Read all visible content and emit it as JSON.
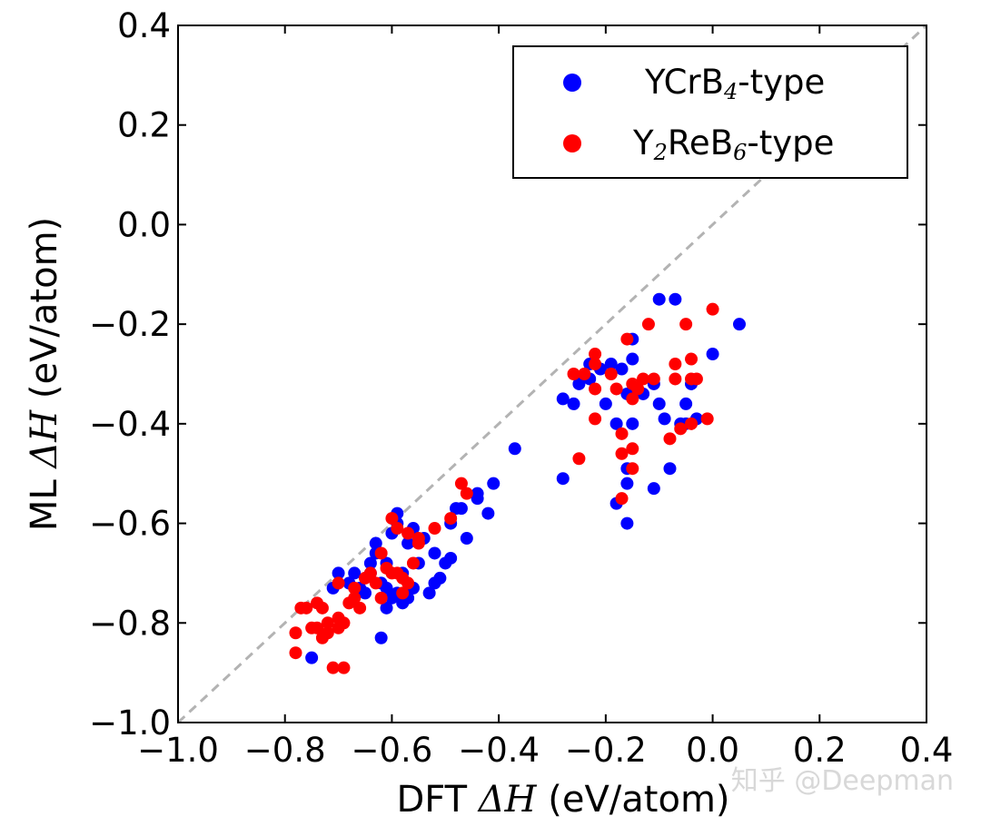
{
  "chart_data": {
    "type": "scatter",
    "xlabel": "DFT ΔH (eV/atom)",
    "ylabel": "ML ΔH (eV/atom)",
    "xlabel_parts": {
      "prefix": "DFT ",
      "delta": "Δ",
      "symbol": "H",
      "unit": " (eV/atom)"
    },
    "ylabel_parts": {
      "prefix": "ML ",
      "delta": "Δ",
      "symbol": "H",
      "unit": " (eV/atom)"
    },
    "xlim": [
      -1.0,
      0.4
    ],
    "ylim": [
      -1.0,
      0.4
    ],
    "xticks": [
      "−1.0",
      "−0.8",
      "−0.6",
      "−0.4",
      "−0.2",
      "0.0",
      "0.2",
      "0.4"
    ],
    "yticks": [
      "−1.0",
      "−0.8",
      "−0.6",
      "−0.4",
      "−0.2",
      "0.0",
      "0.2",
      "0.4"
    ],
    "xtick_values": [
      -1.0,
      -0.8,
      -0.6,
      -0.4,
      -0.2,
      0.0,
      0.2,
      0.4
    ],
    "ytick_values": [
      -1.0,
      -0.8,
      -0.6,
      -0.4,
      -0.2,
      0.0,
      0.2,
      0.4
    ],
    "reference_line": {
      "style": "dashed",
      "color": "#b3b3b3",
      "from": [
        -1.0,
        -1.0
      ],
      "to": [
        0.4,
        0.4
      ]
    },
    "legend": {
      "placement": "top-right",
      "entries": [
        {
          "base": "YCrB",
          "sub": "4",
          "mid": "",
          "sub2": "",
          "suffix": "-type",
          "color": "#0000ff"
        },
        {
          "base": "Y",
          "sub": "2",
          "mid": "ReB",
          "sub2": "6",
          "suffix": "-type",
          "color": "#ff0000"
        }
      ]
    },
    "series": [
      {
        "name": "YCrB4-type",
        "color": "#0000ff",
        "points": [
          [
            -0.75,
            -0.87
          ],
          [
            -0.71,
            -0.73
          ],
          [
            -0.7,
            -0.7
          ],
          [
            -0.68,
            -0.72
          ],
          [
            -0.67,
            -0.7
          ],
          [
            -0.66,
            -0.73
          ],
          [
            -0.65,
            -0.74
          ],
          [
            -0.64,
            -0.7
          ],
          [
            -0.64,
            -0.68
          ],
          [
            -0.63,
            -0.66
          ],
          [
            -0.63,
            -0.64
          ],
          [
            -0.62,
            -0.83
          ],
          [
            -0.62,
            -0.72
          ],
          [
            -0.61,
            -0.77
          ],
          [
            -0.61,
            -0.73
          ],
          [
            -0.61,
            -0.68
          ],
          [
            -0.6,
            -0.75
          ],
          [
            -0.6,
            -0.62
          ],
          [
            -0.59,
            -0.6
          ],
          [
            -0.59,
            -0.58
          ],
          [
            -0.59,
            -0.74
          ],
          [
            -0.58,
            -0.76
          ],
          [
            -0.58,
            -0.7
          ],
          [
            -0.57,
            -0.75
          ],
          [
            -0.57,
            -0.64
          ],
          [
            -0.56,
            -0.61
          ],
          [
            -0.56,
            -0.73
          ],
          [
            -0.55,
            -0.68
          ],
          [
            -0.54,
            -0.63
          ],
          [
            -0.53,
            -0.74
          ],
          [
            -0.52,
            -0.66
          ],
          [
            -0.52,
            -0.72
          ],
          [
            -0.51,
            -0.71
          ],
          [
            -0.5,
            -0.68
          ],
          [
            -0.49,
            -0.67
          ],
          [
            -0.49,
            -0.6
          ],
          [
            -0.48,
            -0.57
          ],
          [
            -0.47,
            -0.57
          ],
          [
            -0.46,
            -0.63
          ],
          [
            -0.44,
            -0.54
          ],
          [
            -0.44,
            -0.55
          ],
          [
            -0.42,
            -0.58
          ],
          [
            -0.41,
            -0.52
          ],
          [
            -0.37,
            -0.45
          ],
          [
            -0.28,
            -0.51
          ],
          [
            -0.28,
            -0.35
          ],
          [
            -0.26,
            -0.36
          ],
          [
            -0.25,
            -0.32
          ],
          [
            -0.23,
            -0.28
          ],
          [
            -0.23,
            -0.31
          ],
          [
            -0.21,
            -0.29
          ],
          [
            -0.2,
            -0.36
          ],
          [
            -0.19,
            -0.28
          ],
          [
            -0.18,
            -0.56
          ],
          [
            -0.18,
            -0.4
          ],
          [
            -0.17,
            -0.29
          ],
          [
            -0.16,
            -0.6
          ],
          [
            -0.16,
            -0.49
          ],
          [
            -0.16,
            -0.52
          ],
          [
            -0.16,
            -0.34
          ],
          [
            -0.15,
            -0.27
          ],
          [
            -0.15,
            -0.23
          ],
          [
            -0.15,
            -0.4
          ],
          [
            -0.13,
            -0.34
          ],
          [
            -0.11,
            -0.32
          ],
          [
            -0.11,
            -0.53
          ],
          [
            -0.1,
            -0.36
          ],
          [
            -0.1,
            -0.15
          ],
          [
            -0.09,
            -0.39
          ],
          [
            -0.08,
            -0.49
          ],
          [
            -0.07,
            -0.15
          ],
          [
            -0.06,
            -0.4
          ],
          [
            -0.05,
            -0.4
          ],
          [
            -0.05,
            -0.36
          ],
          [
            -0.04,
            -0.32
          ],
          [
            -0.03,
            -0.39
          ],
          [
            0.0,
            -0.26
          ],
          [
            0.05,
            -0.2
          ]
        ]
      },
      {
        "name": "Y2ReB6-type",
        "color": "#ff0000",
        "points": [
          [
            -0.78,
            -0.82
          ],
          [
            -0.78,
            -0.86
          ],
          [
            -0.77,
            -0.77
          ],
          [
            -0.76,
            -0.77
          ],
          [
            -0.75,
            -0.81
          ],
          [
            -0.74,
            -0.76
          ],
          [
            -0.74,
            -0.81
          ],
          [
            -0.73,
            -0.83
          ],
          [
            -0.73,
            -0.77
          ],
          [
            -0.72,
            -0.8
          ],
          [
            -0.72,
            -0.82
          ],
          [
            -0.71,
            -0.89
          ],
          [
            -0.7,
            -0.79
          ],
          [
            -0.7,
            -0.72
          ],
          [
            -0.7,
            -0.81
          ],
          [
            -0.69,
            -0.89
          ],
          [
            -0.69,
            -0.8
          ],
          [
            -0.68,
            -0.76
          ],
          [
            -0.67,
            -0.73
          ],
          [
            -0.67,
            -0.75
          ],
          [
            -0.66,
            -0.77
          ],
          [
            -0.65,
            -0.71
          ],
          [
            -0.64,
            -0.7
          ],
          [
            -0.63,
            -0.72
          ],
          [
            -0.62,
            -0.75
          ],
          [
            -0.62,
            -0.66
          ],
          [
            -0.61,
            -0.69
          ],
          [
            -0.6,
            -0.7
          ],
          [
            -0.6,
            -0.59
          ],
          [
            -0.59,
            -0.61
          ],
          [
            -0.59,
            -0.7
          ],
          [
            -0.58,
            -0.74
          ],
          [
            -0.58,
            -0.71
          ],
          [
            -0.57,
            -0.72
          ],
          [
            -0.57,
            -0.62
          ],
          [
            -0.56,
            -0.68
          ],
          [
            -0.55,
            -0.63
          ],
          [
            -0.55,
            -0.64
          ],
          [
            -0.52,
            -0.61
          ],
          [
            -0.49,
            -0.59
          ],
          [
            -0.47,
            -0.52
          ],
          [
            -0.46,
            -0.54
          ],
          [
            -0.25,
            -0.47
          ],
          [
            -0.24,
            -0.3
          ],
          [
            -0.26,
            -0.3
          ],
          [
            -0.22,
            -0.28
          ],
          [
            -0.22,
            -0.33
          ],
          [
            -0.22,
            -0.26
          ],
          [
            -0.22,
            -0.39
          ],
          [
            -0.19,
            -0.3
          ],
          [
            -0.18,
            -0.33
          ],
          [
            -0.17,
            -0.42
          ],
          [
            -0.17,
            -0.46
          ],
          [
            -0.17,
            -0.55
          ],
          [
            -0.16,
            -0.23
          ],
          [
            -0.15,
            -0.32
          ],
          [
            -0.15,
            -0.35
          ],
          [
            -0.15,
            -0.45
          ],
          [
            -0.15,
            -0.49
          ],
          [
            -0.14,
            -0.33
          ],
          [
            -0.13,
            -0.31
          ],
          [
            -0.12,
            -0.2
          ],
          [
            -0.11,
            -0.31
          ],
          [
            -0.08,
            -0.43
          ],
          [
            -0.07,
            -0.31
          ],
          [
            -0.07,
            -0.28
          ],
          [
            -0.06,
            -0.41
          ],
          [
            -0.05,
            -0.2
          ],
          [
            -0.04,
            -0.4
          ],
          [
            -0.04,
            -0.27
          ],
          [
            -0.04,
            -0.31
          ],
          [
            -0.03,
            -0.31
          ],
          [
            -0.01,
            -0.39
          ],
          [
            0.0,
            -0.17
          ]
        ]
      }
    ]
  },
  "watermark": "知乎 @Deepman"
}
